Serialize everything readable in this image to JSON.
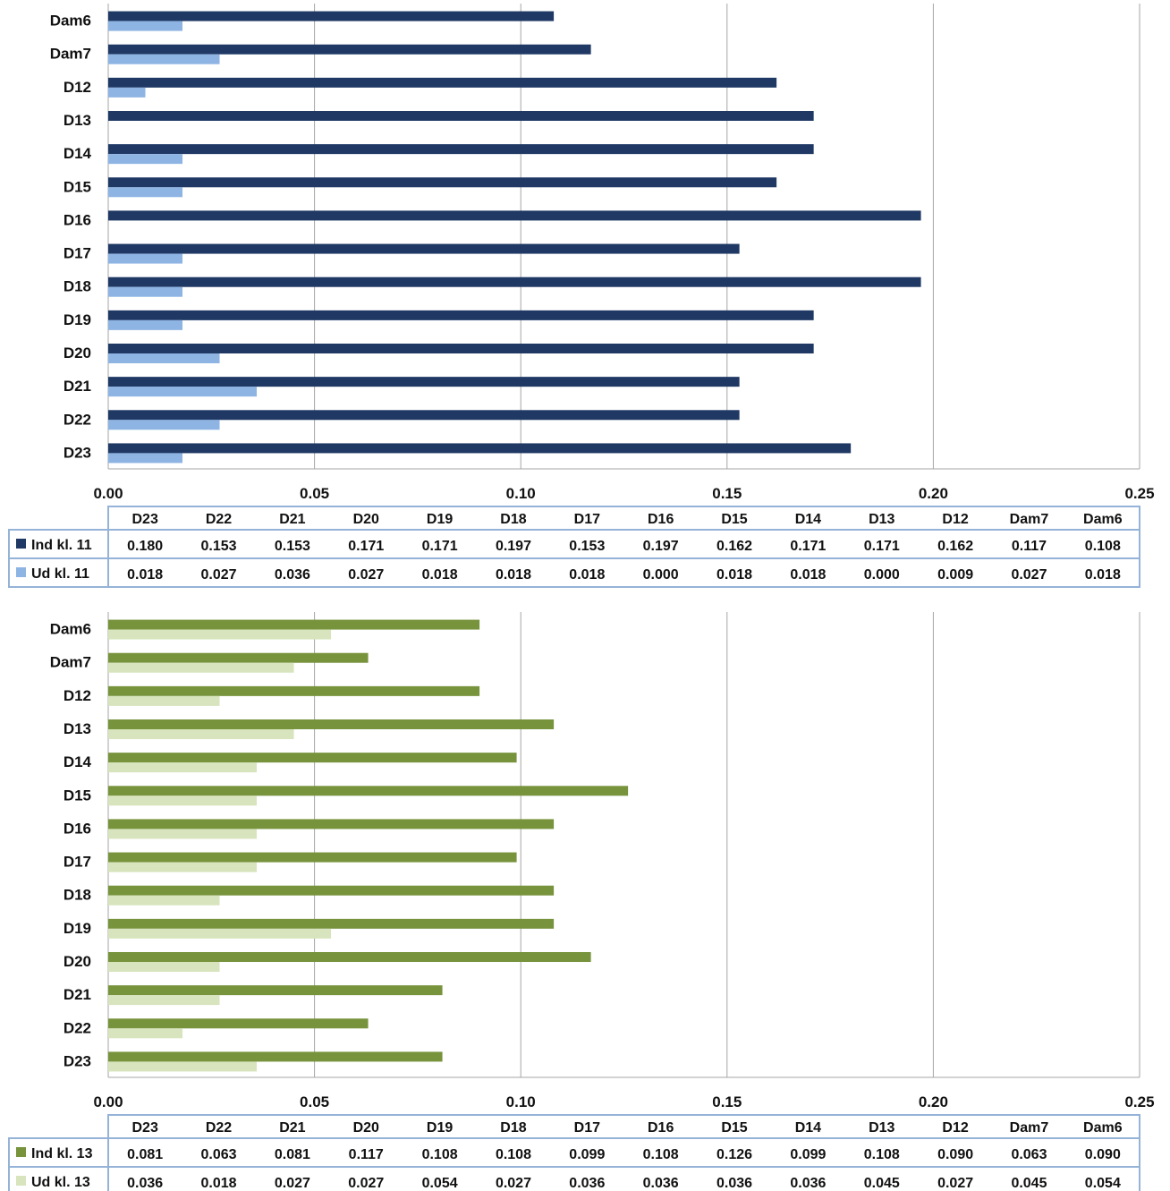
{
  "chart_data": [
    {
      "type": "bar",
      "orientation": "horizontal",
      "categories": [
        "D23",
        "D22",
        "D21",
        "D20",
        "D19",
        "D18",
        "D17",
        "D16",
        "D15",
        "D14",
        "D13",
        "D12",
        "Dam7",
        "Dam6"
      ],
      "series": [
        {
          "name": "Ind kl. 11",
          "color": "#1f3864",
          "values": [
            0.18,
            0.153,
            0.153,
            0.171,
            0.171,
            0.197,
            0.153,
            0.197,
            0.162,
            0.171,
            0.171,
            0.162,
            0.117,
            0.108
          ]
        },
        {
          "name": "Ud kl.  11",
          "color": "#8eb4e3",
          "values": [
            0.018,
            0.027,
            0.036,
            0.027,
            0.018,
            0.018,
            0.018,
            0.0,
            0.018,
            0.018,
            0.0,
            0.009,
            0.027,
            0.018
          ]
        }
      ],
      "value_labels": [
        [
          "0.180",
          "0.153",
          "0.153",
          "0.171",
          "0.171",
          "0.197",
          "0.153",
          "0.197",
          "0.162",
          "0.171",
          "0.171",
          "0.162",
          "0.117",
          "0.108"
        ],
        [
          "0.018",
          "0.027",
          "0.036",
          "0.027",
          "0.018",
          "0.018",
          "0.018",
          "0.000",
          "0.018",
          "0.018",
          "0.000",
          "0.009",
          "0.027",
          "0.018"
        ]
      ],
      "xlim": [
        0,
        0.25
      ],
      "x_ticks": [
        "0.00",
        "0.05",
        "0.10",
        "0.15",
        "0.20",
        "0.25"
      ],
      "grid": true,
      "data_table": true,
      "table_border_color": "#95b3d7"
    },
    {
      "type": "bar",
      "orientation": "horizontal",
      "categories": [
        "D23",
        "D22",
        "D21",
        "D20",
        "D19",
        "D18",
        "D17",
        "D16",
        "D15",
        "D14",
        "D13",
        "D12",
        "Dam7",
        "Dam6"
      ],
      "series": [
        {
          "name": "Ind kl. 13",
          "color": "#77933c",
          "values": [
            0.081,
            0.063,
            0.081,
            0.117,
            0.108,
            0.108,
            0.099,
            0.108,
            0.126,
            0.099,
            0.108,
            0.09,
            0.063,
            0.09
          ]
        },
        {
          "name": "Ud kl.  13",
          "color": "#d7e4bd",
          "values": [
            0.036,
            0.018,
            0.027,
            0.027,
            0.054,
            0.027,
            0.036,
            0.036,
            0.036,
            0.036,
            0.045,
            0.027,
            0.045,
            0.054
          ]
        }
      ],
      "value_labels": [
        [
          "0.081",
          "0.063",
          "0.081",
          "0.117",
          "0.108",
          "0.108",
          "0.099",
          "0.108",
          "0.126",
          "0.099",
          "0.108",
          "0.090",
          "0.063",
          "0.090"
        ],
        [
          "0.036",
          "0.018",
          "0.027",
          "0.027",
          "0.054",
          "0.027",
          "0.036",
          "0.036",
          "0.036",
          "0.036",
          "0.045",
          "0.027",
          "0.045",
          "0.054"
        ]
      ],
      "xlim": [
        0,
        0.25
      ],
      "x_ticks": [
        "0.00",
        "0.05",
        "0.10",
        "0.15",
        "0.20",
        "0.25"
      ],
      "grid": true,
      "data_table": true,
      "table_border_color": "#95b3d7"
    }
  ]
}
